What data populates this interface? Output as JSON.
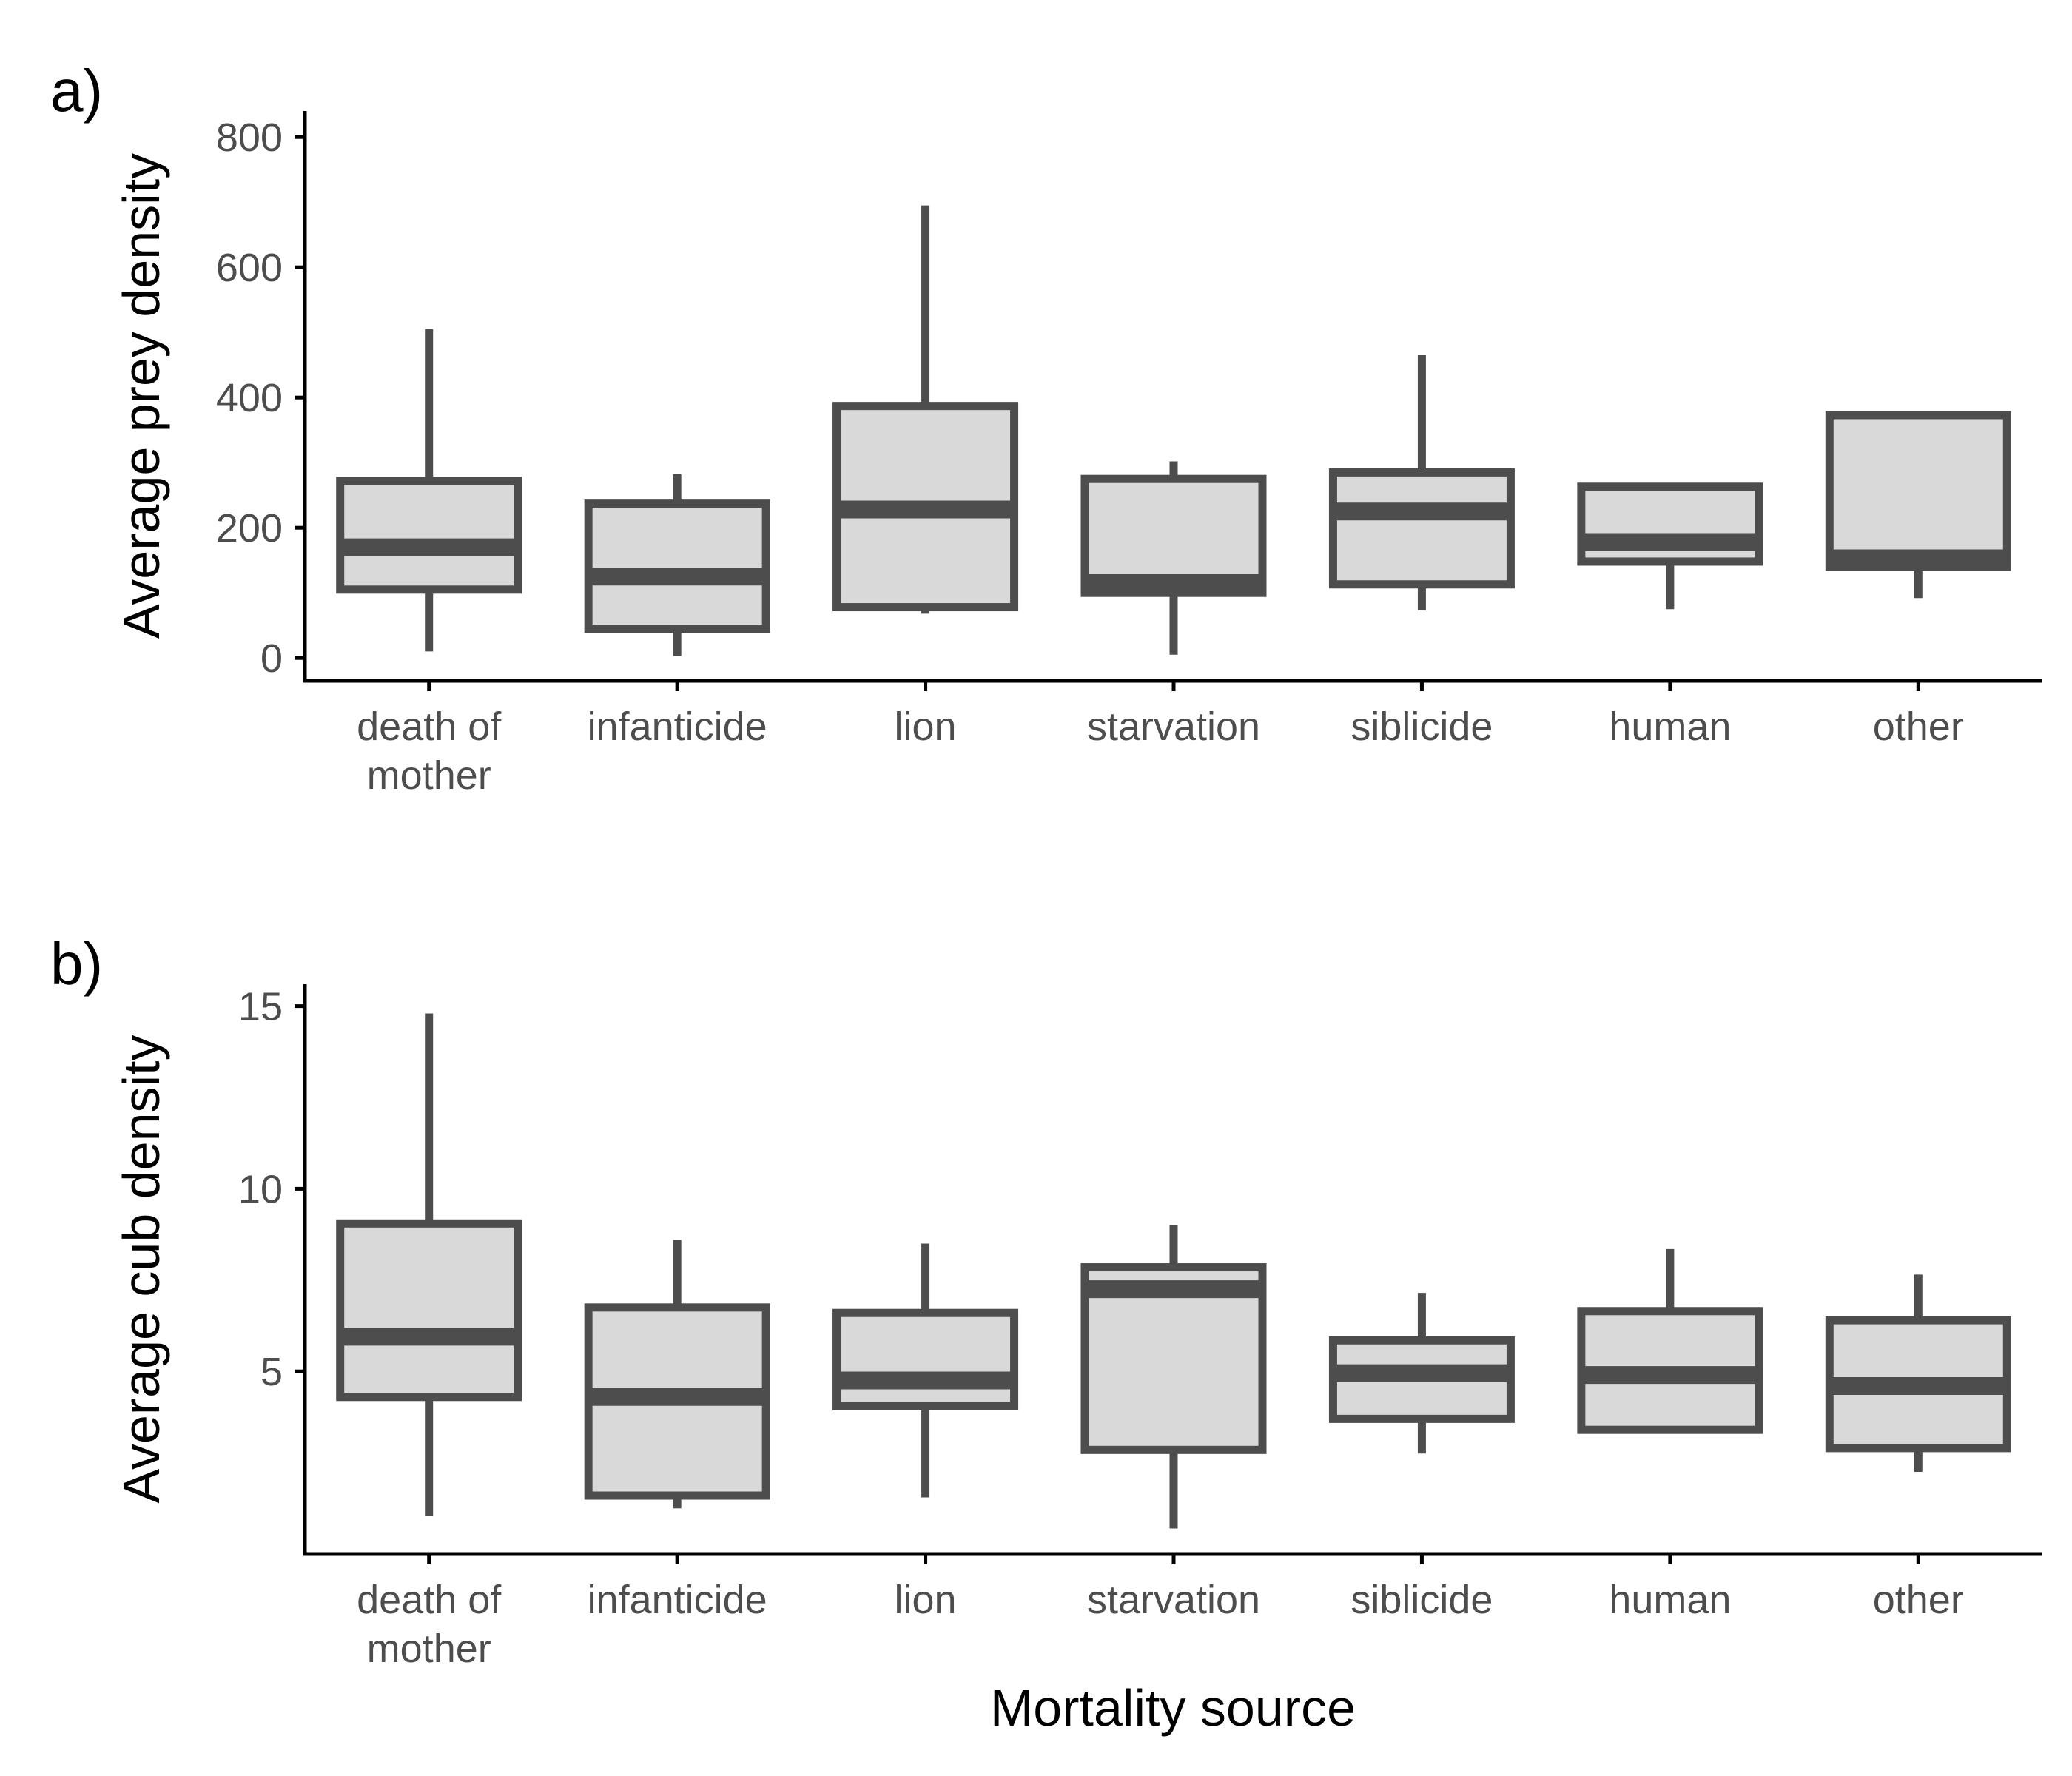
{
  "figure": {
    "xlabel": "Mortality source",
    "colors": {
      "box_fill": "#d9d9d9",
      "box_line": "#4d4d4d",
      "axis": "#000000",
      "tick_text": "#4d4d4d"
    }
  },
  "chart_data": [
    {
      "type": "boxplot",
      "panel_label": "a)",
      "title": "",
      "xlabel": "",
      "ylabel": "Average prey density",
      "ylim": [
        -35,
        840
      ],
      "yticks": [
        0,
        200,
        400,
        600,
        800
      ],
      "ytick_labels": [
        "0",
        "200",
        "400",
        "600",
        "800"
      ],
      "grid": false,
      "legend": "none",
      "categories": [
        "death of\nmother",
        "infanticide",
        "lion",
        "starvation",
        "siblicide",
        "human",
        "other"
      ],
      "boxes": [
        {
          "min": 10,
          "q1": 105,
          "median": 170,
          "q3": 272,
          "max": 505
        },
        {
          "min": 3,
          "q1": 45,
          "median": 125,
          "q3": 237,
          "max": 282
        },
        {
          "min": 68,
          "q1": 78,
          "median": 228,
          "q3": 387,
          "max": 695
        },
        {
          "min": 5,
          "q1": 100,
          "median": 115,
          "q3": 275,
          "max": 302
        },
        {
          "min": 73,
          "q1": 113,
          "median": 225,
          "q3": 285,
          "max": 465
        },
        {
          "min": 75,
          "q1": 148,
          "median": 178,
          "q3": 263,
          "max": 263
        },
        {
          "min": 92,
          "q1": 140,
          "median": 153,
          "q3": 373,
          "max": 373
        }
      ]
    },
    {
      "type": "boxplot",
      "panel_label": "b)",
      "title": "",
      "xlabel": "Mortality source",
      "ylabel": "Average cub density",
      "ylim": [
        0.0,
        15.6
      ],
      "yticks": [
        5,
        10,
        15
      ],
      "ytick_labels": [
        "5",
        "10",
        "15"
      ],
      "grid": false,
      "legend": "none",
      "categories": [
        "death of\nmother",
        "infanticide",
        "lion",
        "starvation",
        "siblicide",
        "human",
        "other"
      ],
      "boxes": [
        {
          "min": 1.05,
          "q1": 4.3,
          "median": 5.95,
          "q3": 9.05,
          "max": 14.8
        },
        {
          "min": 1.25,
          "q1": 1.6,
          "median": 4.3,
          "q3": 6.75,
          "max": 8.6
        },
        {
          "min": 1.55,
          "q1": 4.05,
          "median": 4.75,
          "q3": 6.6,
          "max": 8.5
        },
        {
          "min": 0.7,
          "q1": 2.85,
          "median": 7.25,
          "q3": 7.85,
          "max": 9.0
        },
        {
          "min": 2.75,
          "q1": 3.7,
          "median": 4.95,
          "q3": 5.85,
          "max": 7.15
        },
        {
          "min": 3.4,
          "q1": 3.4,
          "median": 4.9,
          "q3": 6.65,
          "max": 8.35
        },
        {
          "min": 2.25,
          "q1": 2.9,
          "median": 4.6,
          "q3": 6.4,
          "max": 7.65
        }
      ]
    }
  ]
}
